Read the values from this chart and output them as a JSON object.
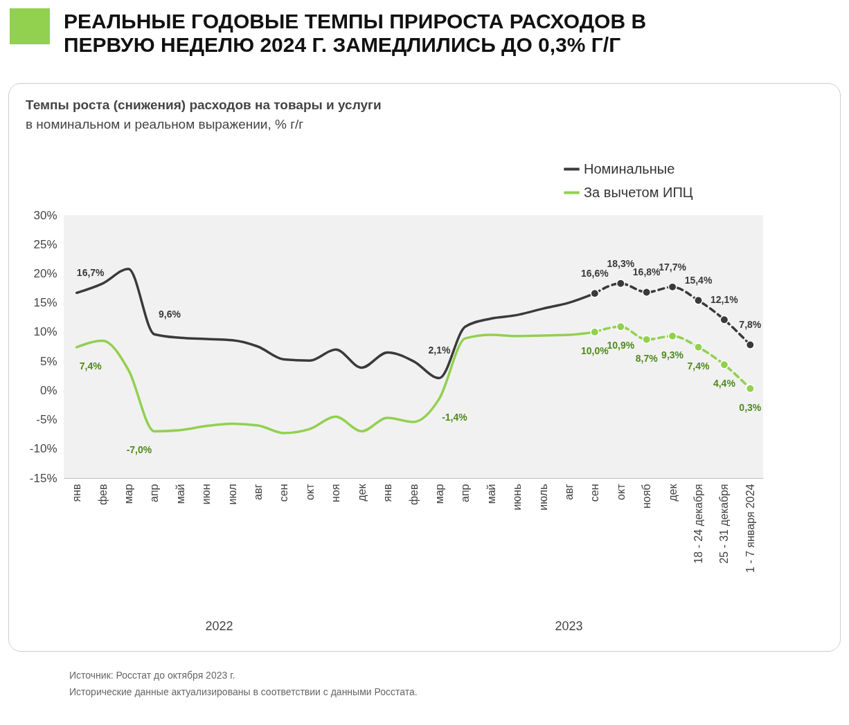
{
  "chart_data": {
    "type": "line",
    "title": "РЕАЛЬНЫЕ ГОДОВЫЕ ТЕМПЫ ПРИРОСТА РАСХОДОВ В ПЕРВУЮ НЕДЕЛЮ 2024 Г. ЗАМЕДЛИЛИСЬ ДО 0,3% Г/Г",
    "subtitle": "Темпы роста (снижения) расходов на товары и услуги",
    "categories": [
      "янв",
      "фев",
      "мар",
      "апр",
      "май",
      "июн",
      "июл",
      "авг",
      "сен",
      "окт",
      "ноя",
      "дек",
      "янв",
      "фев",
      "мар",
      "апр",
      "май",
      "июнь",
      "июль",
      "авг",
      "сен",
      "окт",
      "нояб",
      "дек",
      "18 - 24 декабря",
      "25 - 31 декабря",
      "1 - 7 января 2024"
    ],
    "series": [
      {
        "name": "Номинальные",
        "color": "#3a3a3a",
        "values": [
          16.7,
          18.3,
          20.8,
          9.6,
          9.0,
          8.8,
          8.6,
          7.5,
          5.3,
          5.1,
          7.0,
          3.9,
          6.5,
          5.0,
          2.1,
          10.9,
          12.3,
          12.9,
          14.0,
          15.0,
          16.6,
          null,
          null,
          null,
          null,
          null,
          null
        ],
        "value_labels": [
          "16,7%",
          null,
          null,
          "9,6%",
          null,
          null,
          null,
          null,
          null,
          null,
          null,
          null,
          null,
          null,
          "2,1%",
          null,
          null,
          null,
          null,
          null,
          null,
          null,
          null,
          null,
          null,
          null,
          null
        ]
      },
      {
        "name": "За вычетом ИПЦ",
        "color": "#92d050",
        "values": [
          7.4,
          8.5,
          3.5,
          -7.0,
          -6.8,
          -6.1,
          -5.7,
          -6.0,
          -7.3,
          -6.6,
          -4.5,
          -7.0,
          -4.7,
          -5.4,
          -1.4,
          8.9,
          9.5,
          9.3,
          9.4,
          9.5,
          10.0,
          null,
          null,
          null,
          null,
          null,
          null
        ],
        "value_labels": [
          "7,4%",
          null,
          null,
          "-7,0%",
          null,
          null,
          null,
          null,
          null,
          null,
          null,
          null,
          null,
          null,
          "-1,4%",
          null,
          null,
          null,
          null,
          null,
          null,
          null,
          null,
          null,
          null,
          null,
          null
        ]
      },
      {
        "color": "#3a3a3a",
        "line_style": "dashed",
        "marker": "circle",
        "values": [
          null,
          null,
          null,
          null,
          null,
          null,
          null,
          null,
          null,
          null,
          null,
          null,
          null,
          null,
          null,
          null,
          null,
          null,
          null,
          null,
          16.6,
          18.3,
          16.8,
          17.7,
          15.4,
          12.1,
          7.8
        ],
        "value_labels": [
          null,
          null,
          null,
          null,
          null,
          null,
          null,
          null,
          null,
          null,
          null,
          null,
          null,
          null,
          null,
          null,
          null,
          null,
          null,
          null,
          "16,6%",
          "18,3%",
          "16,8%",
          "17,7%",
          "15,4%",
          "12,1%",
          "7,8%"
        ]
      },
      {
        "color": "#92d050",
        "line_style": "dashed",
        "marker": "circle",
        "values": [
          null,
          null,
          null,
          null,
          null,
          null,
          null,
          null,
          null,
          null,
          null,
          null,
          null,
          null,
          null,
          null,
          null,
          null,
          null,
          null,
          10.0,
          10.9,
          8.7,
          9.3,
          7.4,
          4.4,
          0.3
        ],
        "value_labels": [
          null,
          null,
          null,
          null,
          null,
          null,
          null,
          null,
          null,
          null,
          null,
          null,
          null,
          null,
          null,
          null,
          null,
          null,
          null,
          null,
          "10,0%",
          "10,9%",
          "8,7%",
          "9,3%",
          "7,4%",
          "4,4%",
          "0,3%"
        ]
      }
    ],
    "ylim": [
      -15,
      30
    ],
    "yticks": [
      {
        "value": -15,
        "label": "-15%"
      },
      {
        "value": -10,
        "label": "-10%"
      },
      {
        "value": -5,
        "label": "-5%"
      },
      {
        "value": 0,
        "label": "0%"
      },
      {
        "value": 5,
        "label": "5%"
      },
      {
        "value": 10,
        "label": "10%"
      },
      {
        "value": 15,
        "label": "15%"
      },
      {
        "value": 20,
        "label": "20%"
      },
      {
        "value": 25,
        "label": "25%"
      },
      {
        "value": 30,
        "label": "30%"
      }
    ],
    "grid": false,
    "legend": "top right",
    "line_style": "solid",
    "marker": "none",
    "annotations": [
      "2022",
      "2023",
      "в номинальном и реальном выражении, % г/г",
      "Источник: Росстат до октября 2023 г.",
      "Исторические данные актуализированы в соответствии с данными Росстата."
    ]
  }
}
